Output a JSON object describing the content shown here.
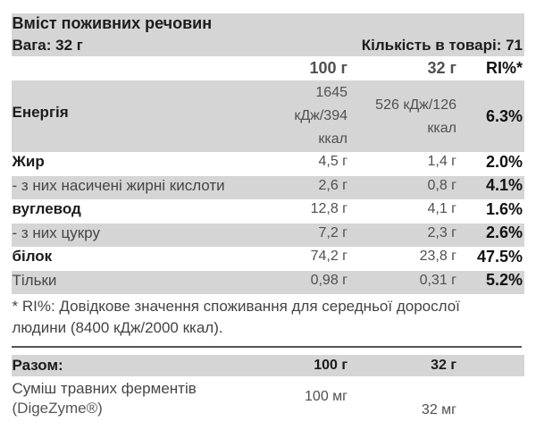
{
  "header": {
    "title": "Вміст поживних речовин",
    "weight": "Вага: 32 г",
    "quantity": "Кількість в товарі: 71"
  },
  "columns": [
    "100 г",
    "32 г",
    "RI%*"
  ],
  "rows": [
    {
      "label": "Енергія",
      "per100": "1645 кДж/394 ккал",
      "per32": "526 кДж/126 ккал",
      "ri": "6.3%"
    },
    {
      "label": "Жир",
      "per100": "4,5 г",
      "per32": "1,4 г",
      "ri": "2.0%"
    },
    {
      "label": "- з них насичені жирні кислоти",
      "per100": "2,6 г",
      "per32": "0,8 г",
      "ri": "4.1%"
    },
    {
      "label": "вуглевод",
      "per100": "12,8 г",
      "per32": "4,1 г",
      "ri": "1.6%"
    },
    {
      "label": "- з них цукру",
      "per100": "7,2 г",
      "per32": "2,3 г",
      "ri": "2.6%"
    },
    {
      "label": "білок",
      "per100": "74,2 г",
      "per32": "23,8 г",
      "ri": "47.5%"
    },
    {
      "label": "Тільки",
      "per100": "0,98 г",
      "per32": "0,31 г",
      "ri": "5.2%"
    }
  ],
  "energy_display": {
    "per100": "1645\nкДж/394\nккал",
    "per32": "526 кДж/126\nккал"
  },
  "footnote": "* RI%: Довідкове значення споживання для середньої дорослої людини (8400 кДж/2000 ккал).",
  "totals": {
    "label": "Разом:",
    "per100": "100 г",
    "per32": "32 г"
  },
  "supplement": {
    "label": "Суміш травних ферментів",
    "label2": "(DigeZyme®)",
    "per100": "100 мг",
    "per32": "32 мг"
  }
}
